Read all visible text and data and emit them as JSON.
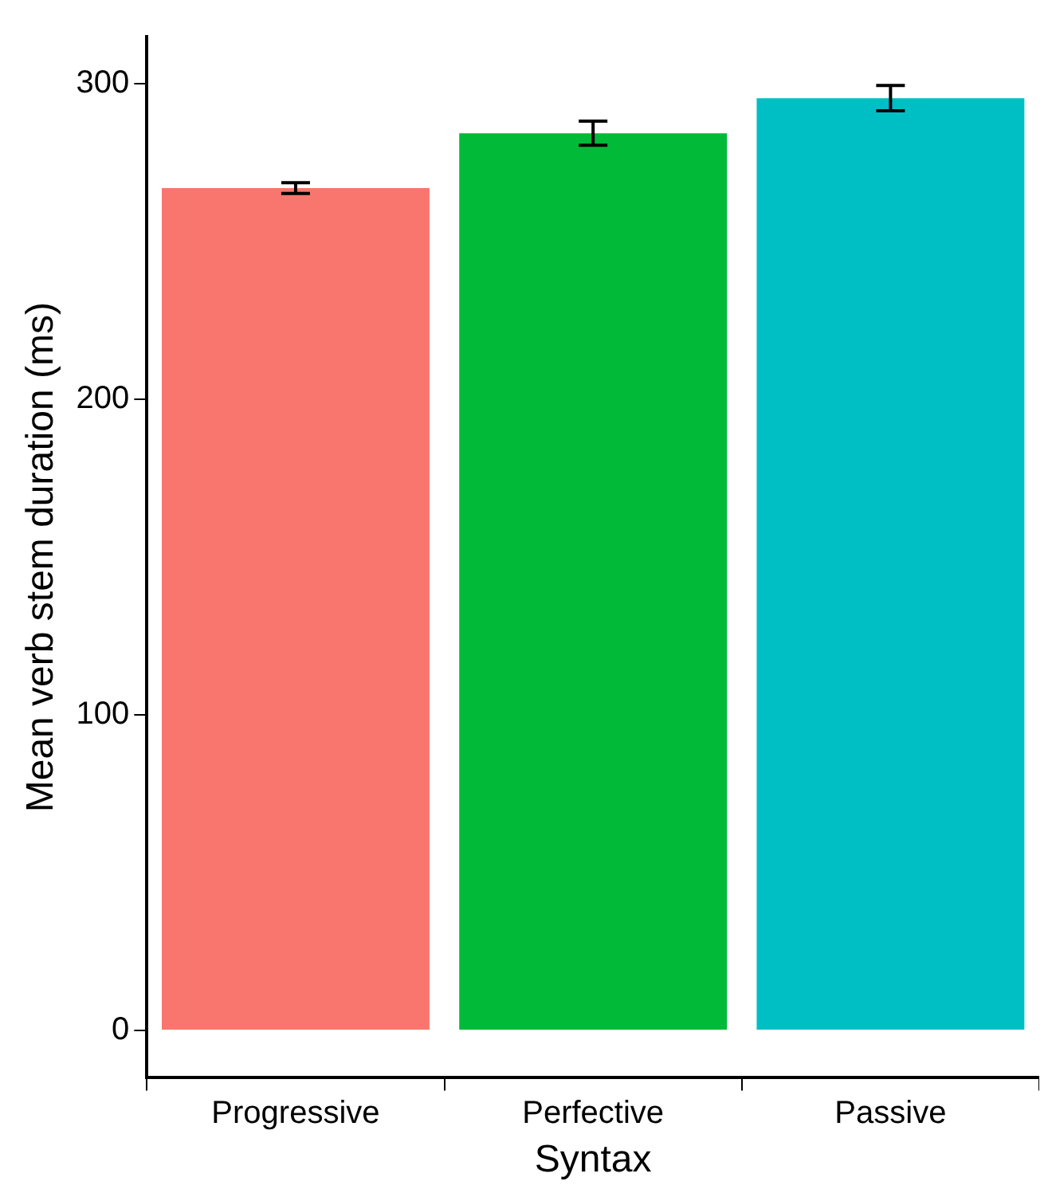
{
  "chart_data": {
    "type": "bar",
    "xlabel": "Syntax",
    "ylabel": "Mean verb stem duration (ms)",
    "categories": [
      "Progressive",
      "Perfective",
      "Passive"
    ],
    "values": [
      267,
      284.4,
      295.5
    ],
    "colors": [
      "#f8766d",
      "#00ba38",
      "#00bfc4"
    ],
    "errors": [
      1.7,
      3.8,
      4
    ],
    "ylim": [
      -15,
      315
    ],
    "yticks": [
      0,
      100,
      200,
      300
    ],
    "grid": false,
    "legend": false
  }
}
